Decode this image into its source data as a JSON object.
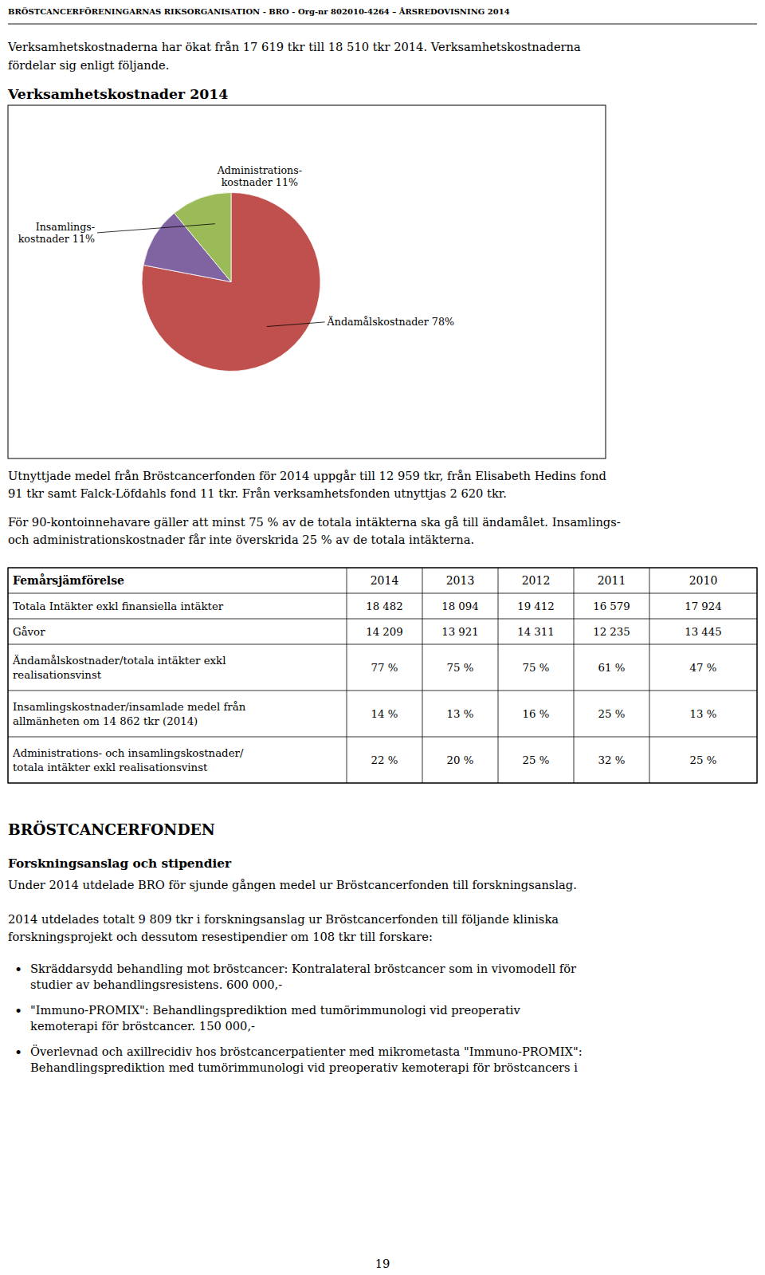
{
  "chart_data": {
    "type": "pie",
    "title": "Verksamhetskostnader 2014",
    "categories": [
      "Ändamålskostnader 78%",
      "Administrations-\nkostnader 11%",
      "Insamlings-\nkostnader 11%"
    ],
    "values": [
      78,
      11,
      11
    ],
    "colors": [
      "#c0504d",
      "#8064a2",
      "#9bbb59"
    ]
  },
  "page": {
    "header_text": "BRÖSTCANCERFÖRENINGARNAS RIKSORGANISATION - BRO  -  Org-nr 802010-4264 – ÅRSREDOVISNING 2014",
    "paragraph1_a": "Verksamhetskostnaderna har ökat från 17 619 tkr till 18 510 tkr 2014. Verksamhetskostnaderna",
    "paragraph1_b": "fördelar sig enligt följande.",
    "paragraph2_a": "Utnyttjade medel från Bröstcancerfonden för 2014 uppgår till 12 959 tkr, från Elisabeth Hedins fond",
    "paragraph2_b": "91 tkr samt Falck-Löfdahls fond 11 tkr. Från verksamhetsfonden utnyttjas 2 620 tkr.",
    "paragraph3_a": "För 90-kontoinnehavare gäller att minst 75 % av de totala intäkterna ska gå till ändamålet. Insamlings-",
    "paragraph3_b": "och administrationskostnader får inte överskrida 25 % av de totala intäkterna.",
    "table": {
      "header": [
        "Femårsjämförelse",
        "2014",
        "2013",
        "2012",
        "2011",
        "2010"
      ],
      "rows": [
        [
          "Totala Intäkter exkl finansiella intäkter",
          "18 482",
          "18 094",
          "19 412",
          "16 579",
          "17 924"
        ],
        [
          "Gåvor",
          "14 209",
          "13 921",
          "14 311",
          "12 235",
          "13 445"
        ],
        [
          "Ändamålskostnader/totala intäkter exkl\nrealisationsvinst",
          "77 %",
          "75 %",
          "75 %",
          "61 %",
          "47 %"
        ],
        [
          "Insamlingskostnader/insamlade medel från\nallmänheten om 14 862 tkr (2014)",
          "14 %",
          "13 %",
          "16 %",
          "25 %",
          "13 %"
        ],
        [
          "Administrations- och insamlingskostnader/\ntotala intäkter exkl realisationsvinst",
          "22 %",
          "20 %",
          "25 %",
          "32 %",
          "25 %"
        ]
      ]
    },
    "section_title": "BRÖSTCANCERFONDEN",
    "subsection_title": "Forskningsanslag och stipendier",
    "paragraph4": "Under 2014 utdelade BRO för sjunde gången medel ur Bröstcancerfonden till forskningsanslag.",
    "paragraph5_a": "2014 utdelades totalt 9 809 tkr i forskningsanslag ur Bröstcancerfonden till följande kliniska",
    "paragraph5_b": "forskningsprojekt och dessutom resestipendier om 108 tkr till forskare:",
    "bullet_symbol": "•",
    "bullet1_a": "Skräddarsydd behandling mot bröstcancer: Kontralateral bröstcancer som in vivomodell för",
    "bullet1_b": "studier av behandlingsresistens.  600 000,-",
    "bullet2_a": "\"Immuno-PROMIX\": Behandlingsprediktion med tumörimmunologi vid preoperativ",
    "bullet2_b": "kemoterapi för bröstcancer.  150 000,-",
    "bullet3_a": "Överlevnad och axillrecidiv hos bröstcancerpatienter med mikrometasta \"Immuno-PROMIX\":",
    "bullet3_b": "Behandlingsprediktion med tumörimmunologi vid preoperativ kemoterapi för bröstcancers i",
    "page_number": "19"
  }
}
